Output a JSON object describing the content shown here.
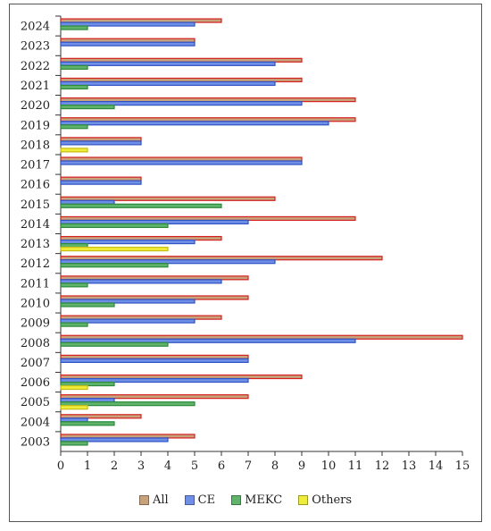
{
  "chart_data": {
    "type": "bar",
    "orientation": "horizontal",
    "title": "",
    "xlabel": "",
    "ylabel": "",
    "xlim": [
      0,
      15
    ],
    "x_ticks": [
      0,
      1,
      2,
      3,
      4,
      5,
      6,
      7,
      8,
      9,
      10,
      11,
      12,
      13,
      14,
      15
    ],
    "grid": false,
    "legend_position": "bottom",
    "categories": [
      "2003",
      "2004",
      "2005",
      "2006",
      "2007",
      "2008",
      "2009",
      "2010",
      "2011",
      "2012",
      "2013",
      "2014",
      "2015",
      "2016",
      "2017",
      "2018",
      "2019",
      "2020",
      "2021",
      "2022",
      "2023",
      "2024"
    ],
    "series": [
      {
        "name": "All",
        "color": "#c8a27a",
        "values": [
          5,
          3,
          7,
          9,
          7,
          15,
          6,
          7,
          7,
          12,
          6,
          11,
          8,
          3,
          9,
          3,
          11,
          11,
          9,
          9,
          5,
          6
        ]
      },
      {
        "name": "CE",
        "color": "#6f8fe6",
        "values": [
          4,
          1,
          2,
          7,
          7,
          11,
          5,
          5,
          6,
          8,
          5,
          7,
          2,
          3,
          9,
          3,
          10,
          9,
          8,
          8,
          5,
          5
        ]
      },
      {
        "name": "MEKC",
        "color": "#5fb36b",
        "values": [
          1,
          2,
          5,
          2,
          0,
          4,
          1,
          2,
          1,
          4,
          1,
          4,
          6,
          0,
          0,
          0,
          1,
          2,
          1,
          1,
          0,
          1
        ]
      },
      {
        "name": "Others",
        "color": "#f0ec3a",
        "values": [
          0,
          0,
          1,
          1,
          0,
          0,
          0,
          0,
          0,
          0,
          4,
          0,
          0,
          0,
          0,
          1,
          0,
          0,
          0,
          0,
          0,
          0
        ]
      }
    ]
  }
}
